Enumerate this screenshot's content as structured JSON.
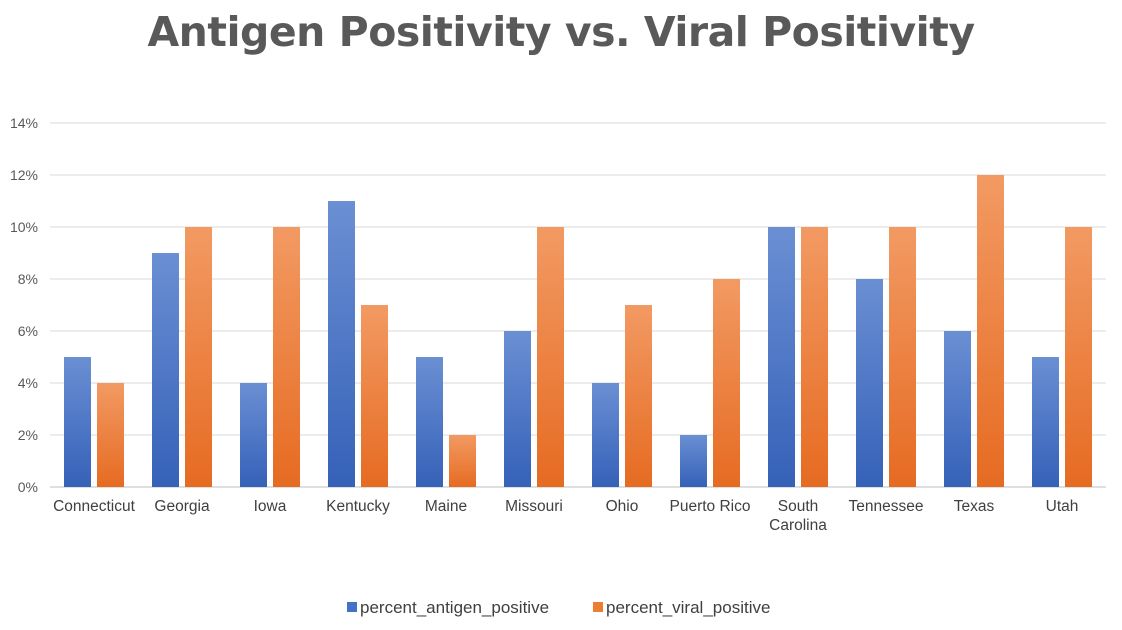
{
  "chart_data": {
    "type": "bar",
    "title": "Antigen Positivity vs. Viral Positivity",
    "xlabel": "",
    "ylabel": "",
    "ylim": [
      0,
      0.14
    ],
    "yticks": [
      "0%",
      "2%",
      "4%",
      "6%",
      "8%",
      "10%",
      "12%",
      "14%"
    ],
    "grid": true,
    "legend_position": "bottom",
    "categories": [
      "Connecticut",
      "Georgia",
      "Iowa",
      "Kentucky",
      "Maine",
      "Missouri",
      "Ohio",
      "Puerto Rico",
      "South Carolina",
      "Tennessee",
      "Texas",
      "Utah"
    ],
    "category_labels": [
      [
        "Connecticut"
      ],
      [
        "Georgia"
      ],
      [
        "Iowa"
      ],
      [
        "Kentucky"
      ],
      [
        "Maine"
      ],
      [
        "Missouri"
      ],
      [
        "Ohio"
      ],
      [
        "Puerto Rico"
      ],
      [
        "South",
        "Carolina"
      ],
      [
        "Tennessee"
      ],
      [
        "Texas"
      ],
      [
        "Utah"
      ]
    ],
    "series": [
      {
        "name": "percent_antigen_positive",
        "color": "#4472C4",
        "values": [
          0.05,
          0.09,
          0.04,
          0.11,
          0.05,
          0.06,
          0.04,
          0.02,
          0.1,
          0.08,
          0.06,
          0.05
        ]
      },
      {
        "name": "percent_viral_positive",
        "color": "#ED7D31",
        "values": [
          0.04,
          0.1,
          0.1,
          0.07,
          0.02,
          0.1,
          0.07,
          0.08,
          0.1,
          0.1,
          0.12,
          0.1
        ]
      }
    ]
  }
}
